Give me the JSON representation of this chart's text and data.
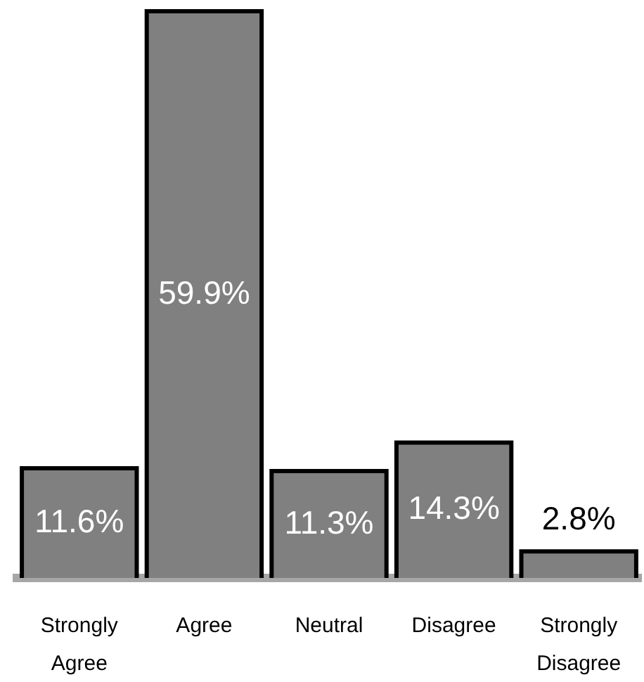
{
  "chart_data": {
    "type": "bar",
    "categories": [
      "Strongly Agree",
      "Agree",
      "Neutral",
      "Disagree",
      "Strongly Disagree"
    ],
    "values": [
      11.6,
      59.9,
      11.3,
      14.3,
      2.8
    ],
    "value_labels": [
      "11.6%",
      "59.9%",
      "11.3%",
      "14.3%",
      "2.8%"
    ],
    "color": "#808080"
  }
}
